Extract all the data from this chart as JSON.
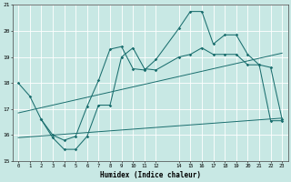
{
  "xlabel": "Humidex (Indice chaleur)",
  "xlim": [
    -0.5,
    23.5
  ],
  "ylim": [
    15,
    21
  ],
  "xticks": [
    0,
    1,
    2,
    3,
    4,
    5,
    6,
    7,
    8,
    9,
    10,
    11,
    12,
    14,
    15,
    16,
    17,
    18,
    19,
    20,
    21,
    22,
    23
  ],
  "yticks": [
    15,
    16,
    17,
    18,
    19,
    20,
    21
  ],
  "bg_color": "#c8e8e4",
  "line_color": "#1a6e6e",
  "grid_color": "#ffffff",
  "line1_x": [
    0,
    1,
    2,
    3,
    4,
    5,
    6,
    7,
    8,
    9,
    10,
    11,
    12,
    14,
    15,
    16,
    17,
    18,
    19,
    20,
    21,
    22,
    23
  ],
  "line1_y": [
    18.0,
    17.5,
    16.6,
    16.0,
    15.8,
    15.95,
    17.1,
    18.1,
    19.3,
    19.4,
    18.55,
    18.5,
    18.9,
    20.1,
    20.75,
    20.75,
    19.5,
    19.85,
    19.85,
    19.1,
    18.7,
    18.6,
    16.6
  ],
  "line2_x": [
    2,
    3,
    4,
    5,
    6,
    7,
    8,
    9,
    10,
    11,
    12,
    14,
    15,
    16,
    17,
    18,
    19,
    20,
    21,
    22,
    23
  ],
  "line2_y": [
    16.6,
    15.9,
    15.45,
    15.45,
    15.95,
    17.15,
    17.15,
    19.0,
    19.35,
    18.55,
    18.5,
    19.0,
    19.1,
    19.35,
    19.1,
    19.1,
    19.1,
    18.7,
    18.7,
    16.55,
    16.55
  ],
  "line3_x": [
    0,
    23
  ],
  "line3_y": [
    16.85,
    19.15
  ],
  "line4_x": [
    0,
    23
  ],
  "line4_y": [
    15.9,
    16.65
  ],
  "figsize": [
    3.2,
    2.0
  ],
  "dpi": 100
}
